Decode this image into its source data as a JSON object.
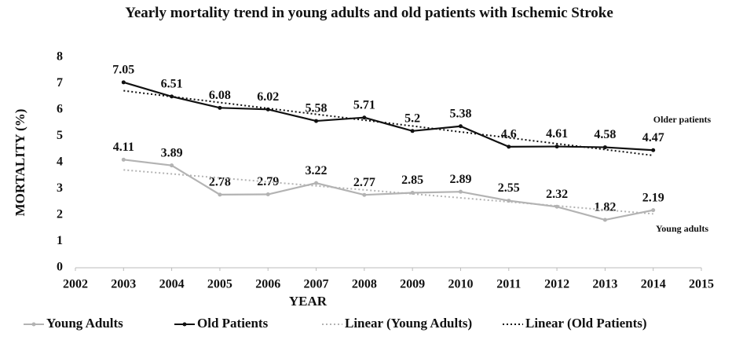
{
  "chart_data": {
    "type": "line",
    "title": "Yearly mortality trend in young adults and old patients with Ischemic Stroke",
    "x_label": "YEAR",
    "y_label": "MORTALITY (%)",
    "x": [
      2003,
      2004,
      2005,
      2006,
      2007,
      2008,
      2009,
      2010,
      2011,
      2012,
      2013,
      2014
    ],
    "series": [
      {
        "name": "Young Adults",
        "color": "#b3b3b3",
        "style": "solid",
        "values": [
          4.11,
          3.89,
          2.78,
          2.79,
          3.22,
          2.77,
          2.85,
          2.89,
          2.55,
          2.32,
          1.82,
          2.19
        ]
      },
      {
        "name": "Old Patients",
        "color": "#111111",
        "style": "solid",
        "values": [
          7.05,
          6.51,
          6.08,
          6.02,
          5.58,
          5.71,
          5.2,
          5.38,
          4.6,
          4.61,
          4.58,
          4.47
        ]
      },
      {
        "name": "Linear (Young Adults)",
        "color": "#b3b3b3",
        "style": "dotted",
        "x": [
          2003,
          2014
        ],
        "values": [
          3.72,
          2.05
        ]
      },
      {
        "name": "Linear (Old Patients)",
        "color": "#111111",
        "style": "dotted",
        "x": [
          2003,
          2014
        ],
        "values": [
          6.73,
          4.27
        ]
      }
    ],
    "annotations": [
      {
        "text": "Older patients",
        "x": 2014.6,
        "y": 5.6
      },
      {
        "text": "Young adults",
        "x": 2014.6,
        "y": 1.45
      }
    ],
    "xlim": [
      2002,
      2015
    ],
    "xticks": [
      2002,
      2003,
      2004,
      2005,
      2006,
      2007,
      2008,
      2009,
      2010,
      2011,
      2012,
      2013,
      2014,
      2015
    ],
    "ylim": [
      0,
      8
    ],
    "yticks": [
      0,
      1,
      2,
      3,
      4,
      5,
      6,
      7,
      8
    ],
    "grid": false,
    "legend": "bottom"
  }
}
